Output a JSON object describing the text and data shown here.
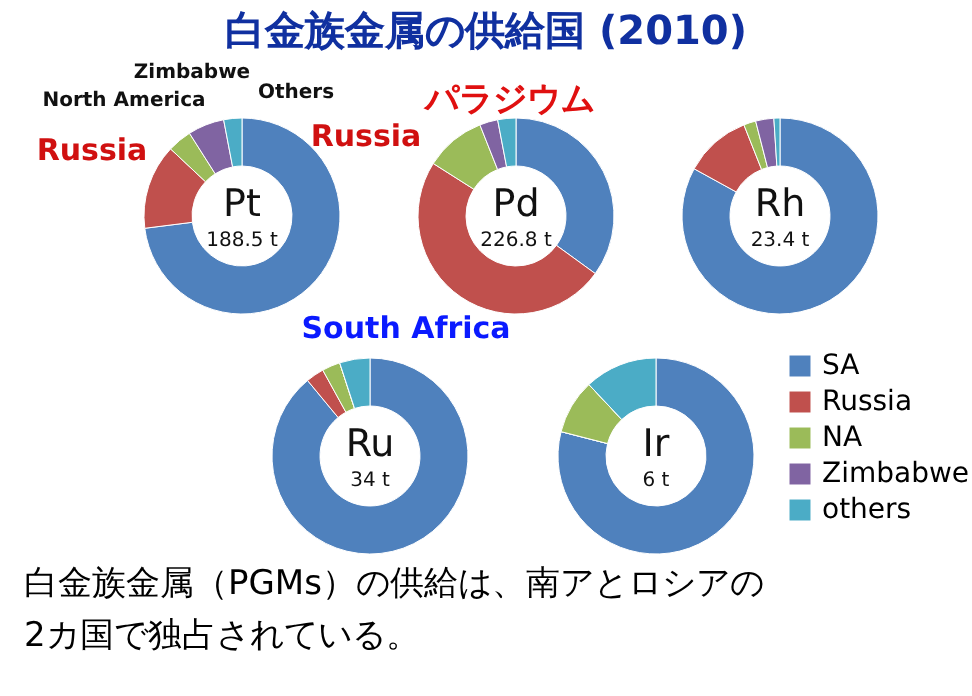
{
  "chart_data": [
    {
      "type": "other",
      "title": "白金族金属の供給国 (2010)",
      "annotations": [
        "白金族金属（PGMs）の供給は、南アとロシアの",
        "2カ国で独占されている。"
      ]
    },
    {
      "type": "donut",
      "title": "Pt",
      "subtitle": "188.5 t",
      "categories": [
        "SA",
        "Russia",
        "NA",
        "Zimbabwe",
        "others"
      ],
      "values": [
        73,
        14,
        4,
        6,
        3
      ],
      "colors": [
        "#4f81bd",
        "#c0504d",
        "#9bbb59",
        "#8064a2",
        "#4bacc6"
      ],
      "annotations": [
        "Russia",
        "North America",
        "Zimbabwe",
        "Others",
        "South Africa"
      ],
      "legend": "right"
    },
    {
      "type": "donut",
      "title": "Pd",
      "subtitle": "226.8 t",
      "categories": [
        null,
        null,
        null,
        null,
        null
      ],
      "values": [
        35,
        49,
        10,
        3,
        3
      ],
      "colors": [
        "#4f81bd",
        "#c0504d",
        "#9bbb59",
        "#8064a2",
        "#4bacc6"
      ],
      "annotations": [
        "パラジウム",
        "Russia"
      ]
    },
    {
      "type": "donut",
      "title": "Rh",
      "subtitle": "23.4 t",
      "categories": [
        null,
        null,
        null,
        null,
        null
      ],
      "values": [
        83,
        11,
        2,
        3,
        1
      ],
      "colors": [
        "#4f81bd",
        "#c0504d",
        "#9bbb59",
        "#8064a2",
        "#4bacc6"
      ]
    },
    {
      "type": "donut",
      "title": "Ru",
      "subtitle": "34 t",
      "categories": [
        null,
        null,
        null,
        null,
        null
      ],
      "values": [
        89,
        3,
        3,
        0,
        5
      ],
      "colors": [
        "#4f81bd",
        "#c0504d",
        "#9bbb59",
        "#8064a2",
        "#4bacc6"
      ]
    },
    {
      "type": "donut",
      "title": "Ir",
      "subtitle": "6 t",
      "categories": [
        null,
        null,
        null,
        null,
        null
      ],
      "values": [
        79,
        0,
        9,
        0,
        12
      ],
      "colors": [
        "#4f81bd",
        "#c0504d",
        "#9bbb59",
        "#8064a2",
        "#4bacc6"
      ]
    }
  ]
}
